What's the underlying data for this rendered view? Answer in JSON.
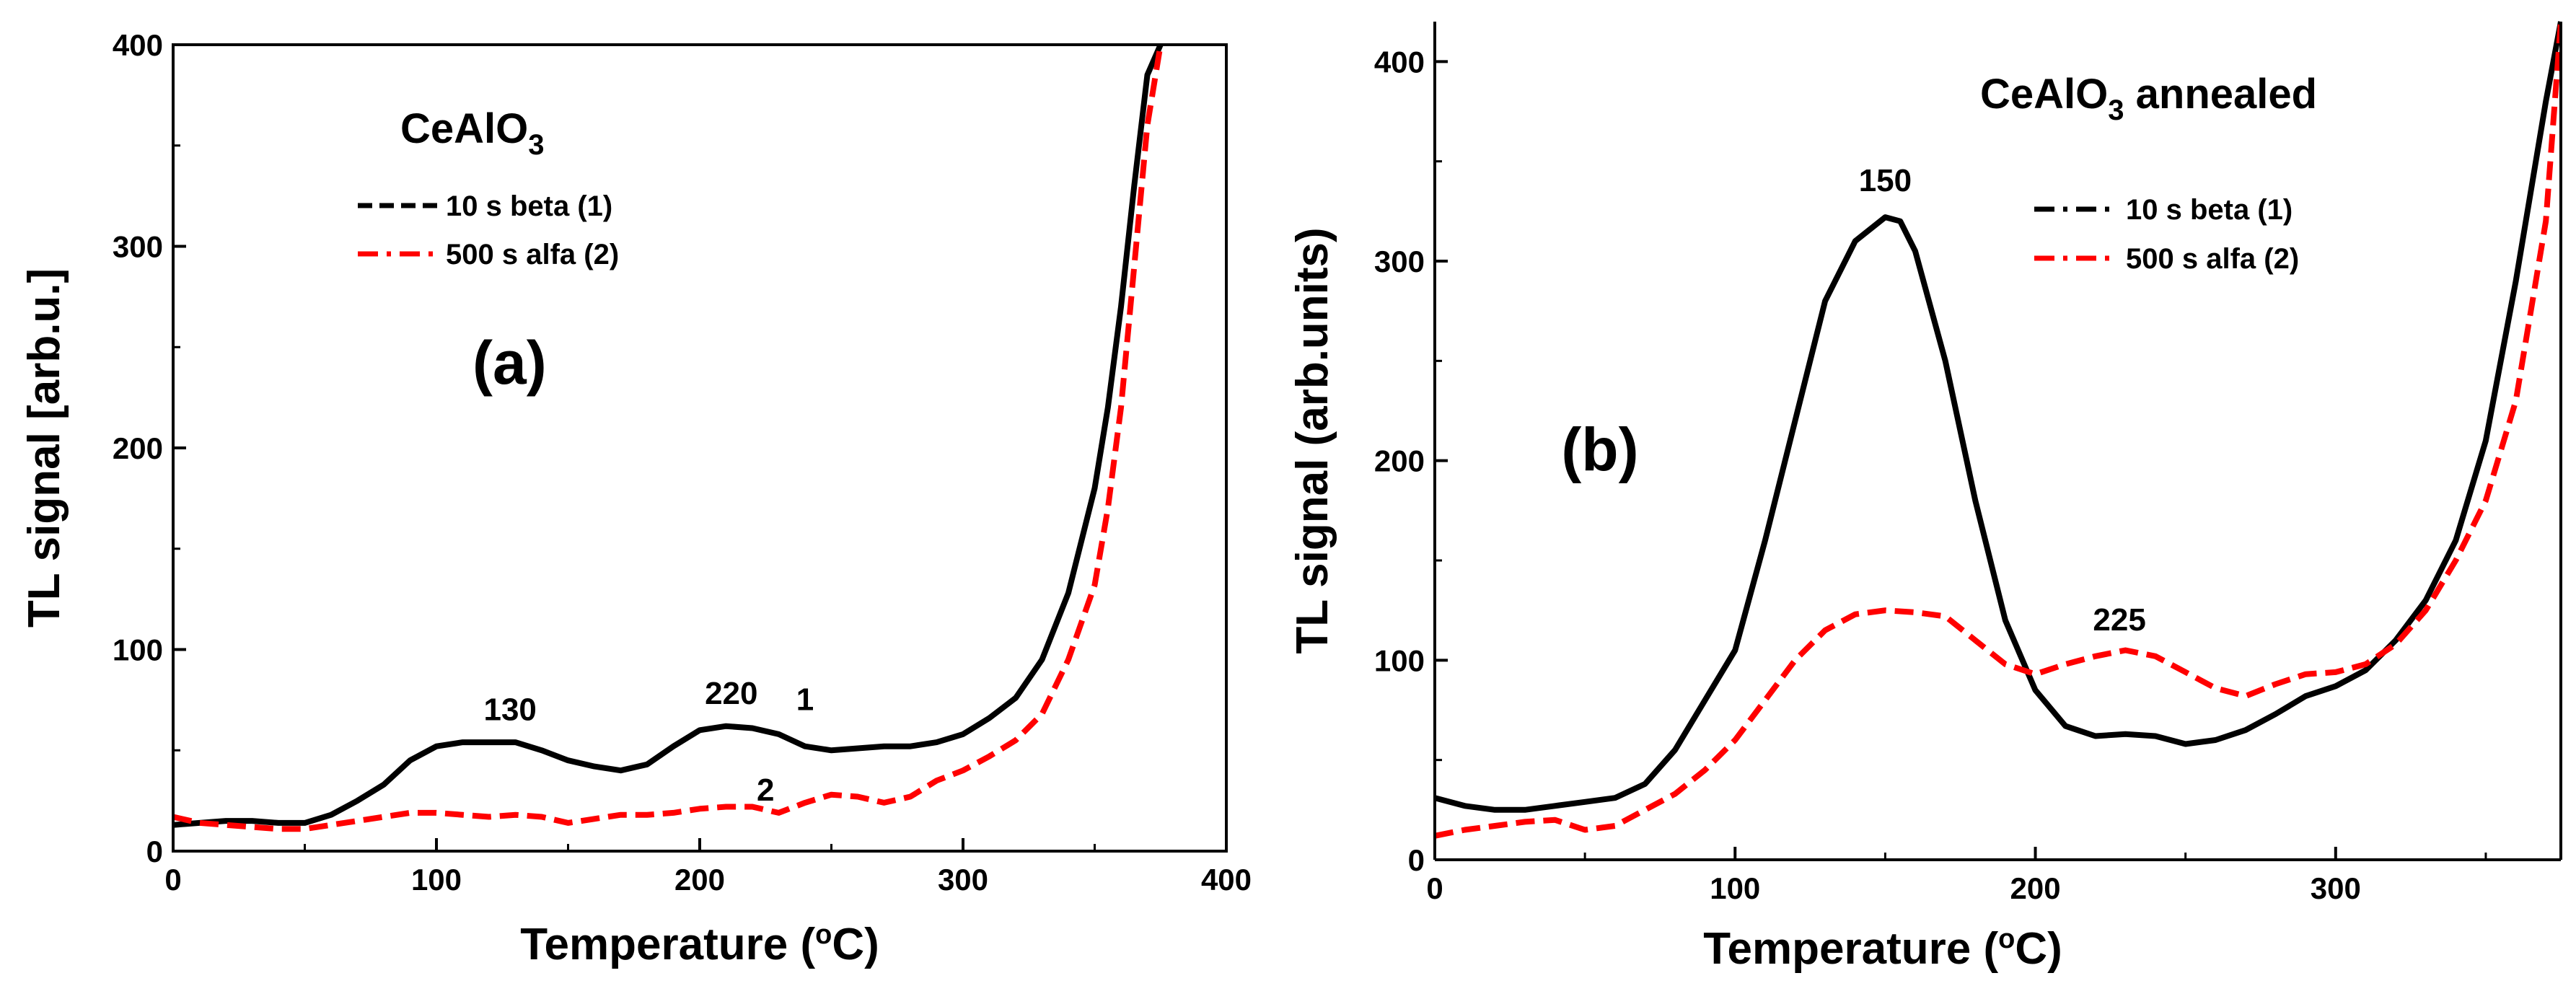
{
  "chart_data": [
    {
      "id": "a",
      "type": "line",
      "panel_label": "(a)",
      "title": "CeAlO",
      "title_subscript": "3",
      "title_suffix": "",
      "xlabel_pre": "Temperature (",
      "xlabel_sup": "o",
      "xlabel_post": "C)",
      "ylabel": "TL signal [arb.u.]",
      "xlim": [
        0,
        400
      ],
      "ylim": [
        0,
        400
      ],
      "xticks": [
        0,
        100,
        200,
        300,
        400
      ],
      "yticks": [
        0,
        100,
        200,
        300,
        400
      ],
      "legend_position": "top-left",
      "series": [
        {
          "name": "10 s beta (1)",
          "color": "#000000",
          "style": "dashed",
          "x": [
            0,
            10,
            20,
            30,
            40,
            50,
            60,
            70,
            80,
            90,
            100,
            110,
            120,
            130,
            140,
            150,
            160,
            170,
            180,
            190,
            200,
            210,
            220,
            230,
            240,
            250,
            260,
            270,
            280,
            290,
            300,
            310,
            320,
            330,
            340,
            350,
            355,
            360,
            365,
            370,
            375
          ],
          "values": [
            13,
            14,
            15,
            15,
            14,
            14,
            18,
            25,
            33,
            45,
            52,
            54,
            54,
            54,
            50,
            45,
            42,
            40,
            43,
            52,
            60,
            62,
            61,
            58,
            52,
            50,
            51,
            52,
            52,
            54,
            58,
            66,
            76,
            95,
            128,
            180,
            220,
            270,
            330,
            385,
            400
          ]
        },
        {
          "name": "500 s alfa (2)",
          "color": "#ff0000",
          "style": "dash-dot",
          "x": [
            0,
            10,
            20,
            30,
            40,
            50,
            60,
            70,
            80,
            90,
            100,
            110,
            120,
            130,
            140,
            150,
            160,
            170,
            180,
            190,
            200,
            210,
            220,
            230,
            240,
            250,
            260,
            270,
            280,
            290,
            300,
            310,
            320,
            330,
            340,
            350,
            355,
            360,
            365,
            370,
            375
          ],
          "values": [
            17,
            14,
            13,
            12,
            11,
            11,
            13,
            15,
            17,
            19,
            19,
            18,
            17,
            18,
            17,
            14,
            16,
            18,
            18,
            19,
            21,
            22,
            22,
            19,
            24,
            28,
            27,
            24,
            27,
            35,
            40,
            47,
            55,
            68,
            95,
            132,
            170,
            220,
            290,
            360,
            400
          ]
        }
      ],
      "annotations": [
        {
          "text": "130",
          "x": 128,
          "y": 65
        },
        {
          "text": "220",
          "x": 212,
          "y": 73
        },
        {
          "text": "1",
          "x": 240,
          "y": 70
        },
        {
          "text": "2",
          "x": 225,
          "y": 25
        }
      ]
    },
    {
      "id": "b",
      "type": "line",
      "panel_label": "(b)",
      "title": "CeAlO",
      "title_subscript": "3",
      "title_suffix": " annealed",
      "xlabel_pre": "Temperature (",
      "xlabel_sup": "o",
      "xlabel_post": "C)",
      "ylabel": "TL signal (arb.units)",
      "xlim": [
        0,
        375
      ],
      "ylim": [
        0,
        420
      ],
      "xticks": [
        0,
        100,
        200,
        300
      ],
      "yticks": [
        0,
        100,
        200,
        300,
        400
      ],
      "legend_position": "top-right",
      "series": [
        {
          "name": "10 s beta (1)",
          "color": "#000000",
          "style": "dash-dot",
          "x": [
            0,
            10,
            20,
            30,
            40,
            50,
            60,
            70,
            80,
            90,
            100,
            110,
            120,
            130,
            140,
            150,
            155,
            160,
            170,
            180,
            190,
            200,
            210,
            220,
            230,
            240,
            250,
            260,
            270,
            280,
            290,
            300,
            310,
            320,
            330,
            340,
            350,
            360,
            370,
            375
          ],
          "values": [
            31,
            27,
            25,
            25,
            27,
            29,
            31,
            38,
            55,
            80,
            105,
            160,
            220,
            280,
            310,
            322,
            320,
            305,
            250,
            180,
            120,
            85,
            67,
            62,
            63,
            62,
            58,
            60,
            65,
            73,
            82,
            87,
            95,
            110,
            130,
            160,
            210,
            290,
            380,
            420
          ]
        },
        {
          "name": "500 s alfa (2)",
          "color": "#ff0000",
          "style": "dash-dot",
          "x": [
            0,
            10,
            20,
            30,
            40,
            50,
            60,
            70,
            80,
            90,
            100,
            110,
            120,
            130,
            140,
            150,
            160,
            170,
            180,
            190,
            200,
            210,
            220,
            230,
            240,
            250,
            260,
            270,
            280,
            290,
            300,
            310,
            320,
            330,
            340,
            350,
            360,
            370,
            375
          ],
          "values": [
            12,
            15,
            17,
            19,
            20,
            15,
            17,
            25,
            33,
            45,
            60,
            80,
            100,
            115,
            123,
            125,
            124,
            122,
            110,
            98,
            93,
            98,
            102,
            105,
            102,
            94,
            86,
            82,
            88,
            93,
            94,
            98,
            108,
            125,
            150,
            180,
            230,
            320,
            420
          ]
        }
      ],
      "annotations": [
        {
          "text": "150",
          "x": 150,
          "y": 335
        },
        {
          "text": "225",
          "x": 228,
          "y": 115
        },
        {
          "text": "(b)",
          "x": 55,
          "y": 195
        }
      ]
    }
  ]
}
